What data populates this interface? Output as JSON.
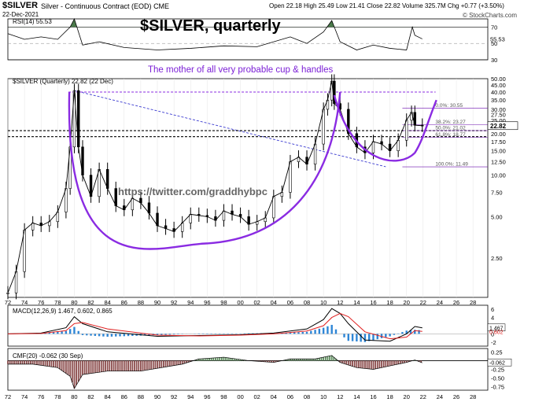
{
  "header": {
    "symbol": "$SILVER",
    "description": "Silver - Continuous Contract (EOD)",
    "exchange": "CME",
    "date": "22-Dec-2021",
    "ohlc": "Open 22.18  High 25.49  Low 21.41  Close 22.82  Volume 325.7M  Chg +0.77 (+3.50%)",
    "watermark": "© StockCharts.com"
  },
  "annotations": {
    "title": "$SILVER, quarterly",
    "subtitle": "The mother of all very probable cup & handles",
    "twitter": "https://twitter.com/graddhybpc"
  },
  "colors": {
    "cup": "#8a2be2",
    "fib": "#6a0dad",
    "trend": "#3a3ad0",
    "candle": "#000000",
    "macd_hist": "#2e86d6",
    "macd_signal": "#e02020",
    "rsi_fill": "#4a7a4a",
    "cmf_pos": "#5b8a5b",
    "cmf_neg": "#8b4c4c"
  },
  "chart_data": [
    {
      "type": "line",
      "panel": "RSI",
      "label": "RSI(14) 55.53",
      "last_value": 55.53,
      "ylim": [
        30,
        80
      ],
      "ticks": [
        70,
        50,
        30
      ],
      "x": [
        1972,
        1974,
        1976,
        1978,
        1979.5,
        1980,
        1981,
        1983,
        1986,
        1990,
        1994,
        1998,
        2002,
        2006,
        2008,
        2010,
        2011,
        2012,
        2014,
        2016,
        2018,
        2020,
        2020.7,
        2021,
        2021.9
      ],
      "values": [
        62,
        55,
        58,
        55,
        70,
        80,
        48,
        52,
        45,
        42,
        44,
        47,
        46,
        58,
        50,
        64,
        78,
        52,
        42,
        48,
        44,
        42,
        70,
        60,
        55.53
      ]
    },
    {
      "type": "line",
      "panel": "price",
      "label": "$SILVER (Quarterly) 22.82 (22 Dec)",
      "scale": "log",
      "ylim": [
        1.3,
        50
      ],
      "right_ticks": [
        "50.00",
        "45.00",
        "40.00",
        "35.00",
        "30.00",
        "27.50",
        "25.00",
        "20.00",
        "17.50",
        "15.00",
        "12.50",
        "10.00",
        "7.50",
        "5.00",
        "2.50"
      ],
      "x_ticks": [
        "72",
        "74",
        "76",
        "78",
        "80",
        "82",
        "84",
        "86",
        "88",
        "90",
        "92",
        "94",
        "96",
        "98",
        "00",
        "02",
        "04",
        "06",
        "08",
        "10",
        "12",
        "14",
        "16",
        "18",
        "20",
        "22",
        "24",
        "26",
        "28"
      ],
      "x": [
        1972,
        1973,
        1974,
        1975,
        1976,
        1977,
        1978,
        1979,
        1979.5,
        1980,
        1980.5,
        1981,
        1982,
        1983,
        1984,
        1985,
        1986,
        1987,
        1988,
        1989,
        1990,
        1991,
        1992,
        1993,
        1994,
        1995,
        1996,
        1997,
        1998,
        1999,
        2000,
        2001,
        2002,
        2003,
        2004,
        2005,
        2006,
        2007,
        2008,
        2009,
        2010,
        2010.5,
        2011,
        2011.3,
        2012,
        2013,
        2014,
        2015,
        2016,
        2017,
        2018,
        2019,
        2020,
        2020.6,
        2021,
        2021.9
      ],
      "values": [
        1.4,
        2.0,
        4.0,
        4.5,
        4.3,
        4.6,
        5.4,
        8.0,
        16.0,
        41.0,
        16.0,
        10.0,
        7.0,
        11.0,
        8.0,
        6.0,
        5.6,
        6.8,
        6.3,
        5.3,
        4.3,
        4.1,
        3.9,
        4.5,
        5.2,
        5.1,
        5.0,
        4.7,
        5.5,
        5.2,
        5.0,
        4.4,
        4.6,
        4.9,
        7.0,
        7.5,
        12.5,
        13.5,
        12.0,
        16.8,
        30.0,
        35.0,
        48.0,
        33.0,
        30.0,
        20.0,
        16.0,
        14.5,
        17.5,
        16.8,
        15.0,
        17.9,
        25.0,
        28.5,
        23.0,
        22.82
      ],
      "last_value": 22.82,
      "fib_levels": [
        {
          "label": "0.0%: 30.55",
          "value": 30.55
        },
        {
          "label": "38.2%: 23.27",
          "value": 23.27
        },
        {
          "label": "50.0%: 21.02",
          "value": 21.02
        },
        {
          "label": "61.8%: 18.77",
          "value": 18.77
        },
        {
          "label": "100.0%: 11.49",
          "value": 11.49
        }
      ],
      "resistance_level": 40.0,
      "support_levels": [
        21.0,
        19.0
      ]
    },
    {
      "type": "line",
      "panel": "MACD",
      "label": "MACD(12,26,9) 1.467, 0.602, 0.865",
      "values_text": {
        "macd": 1.467,
        "signal": 0.602,
        "histogram": 0.865
      },
      "ylim": [
        -3,
        7
      ],
      "ticks": [
        "6",
        "4",
        "2",
        "0",
        "-2"
      ],
      "x": [
        1972,
        1976,
        1979,
        1980,
        1981,
        1984,
        1990,
        1995,
        2000,
        2004,
        2008,
        2010,
        2011,
        2012,
        2013,
        2015,
        2018,
        2020,
        2021,
        2021.9
      ],
      "macd": [
        0,
        0.2,
        1.5,
        4.2,
        2.5,
        0.5,
        -0.6,
        -0.4,
        -0.2,
        0.2,
        1.2,
        3.5,
        6.2,
        5.0,
        2.5,
        -1.5,
        -1.8,
        0.0,
        1.8,
        1.467
      ],
      "signal": [
        0,
        0.1,
        0.8,
        2.5,
        2.8,
        1.2,
        -0.3,
        -0.5,
        -0.3,
        0.0,
        0.7,
        2.0,
        4.0,
        5.0,
        4.2,
        0.5,
        -1.2,
        -0.8,
        0.8,
        0.602
      ]
    },
    {
      "type": "area",
      "panel": "CMF",
      "label": "CMF(20) -0.062 (30 Sep)",
      "last_value": -0.062,
      "ylim": [
        -0.85,
        0.35
      ],
      "ticks": [
        "0.25",
        "0.00",
        "-0.25",
        "-0.50",
        "-0.75"
      ],
      "x": [
        1972,
        1975,
        1978,
        1979.5,
        1980,
        1981,
        1984,
        1988,
        1993,
        1995,
        1998,
        2001,
        2004,
        2006,
        2009,
        2011,
        2012,
        2014,
        2016,
        2018,
        2020,
        2021,
        2021.9
      ],
      "values": [
        -0.1,
        -0.1,
        -0.2,
        -0.45,
        -0.8,
        -0.4,
        -0.3,
        -0.3,
        -0.1,
        0.05,
        0.1,
        0.0,
        -0.05,
        0.05,
        0.05,
        0.15,
        -0.05,
        -0.2,
        -0.25,
        -0.15,
        -0.05,
        0.02,
        -0.062
      ]
    }
  ]
}
